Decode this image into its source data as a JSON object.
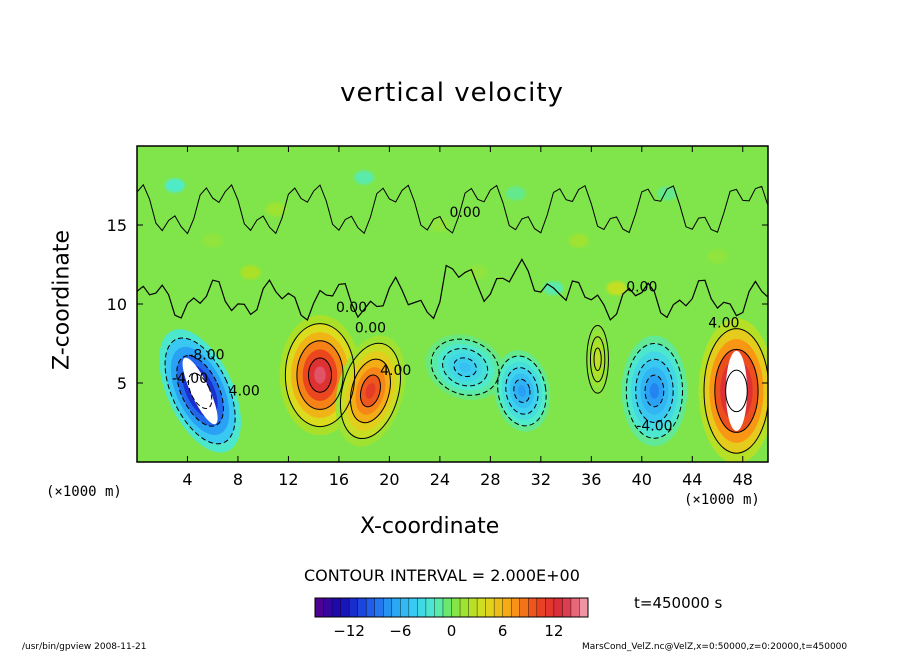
{
  "chart_data": {
    "type": "heatmap",
    "title": "vertical velocity",
    "xlabel": "X-coordinate",
    "ylabel": "Z-coordinate",
    "x_unit_label": "(×1000 m)",
    "xlim": [
      0,
      50
    ],
    "ylim": [
      0,
      20
    ],
    "x_ticks": [
      4,
      8,
      12,
      16,
      20,
      24,
      28,
      32,
      36,
      40,
      44,
      48
    ],
    "y_ticks": [
      5,
      10,
      15
    ],
    "contour_interval_text": "CONTOUR INTERVAL = 2.000E+00",
    "contour_labels": [
      "4.00",
      "-8.00",
      "-4.00",
      "0.00",
      "0.00",
      "0.00",
      "4.00",
      "-4.00",
      "4.00",
      "0.00"
    ],
    "colorbar": {
      "min": -16,
      "max": 16,
      "step": 1,
      "tick_values": [
        -12,
        -6,
        0,
        6,
        12
      ],
      "tick_labels": [
        "−12",
        "−6",
        "0",
        "6",
        "12"
      ]
    },
    "features": [
      {
        "sign": "down",
        "x": 5,
        "z": 4.5,
        "peak": -16
      },
      {
        "sign": "up",
        "x": 14.5,
        "z": 5.5,
        "peak": 14
      },
      {
        "sign": "up",
        "x": 18.5,
        "z": 4.5,
        "peak": 11
      },
      {
        "sign": "down",
        "x": 26,
        "z": 6,
        "peak": -5
      },
      {
        "sign": "down",
        "x": 30.5,
        "z": 4.5,
        "peak": -7
      },
      {
        "sign": "up",
        "x": 36.5,
        "z": 6.5,
        "peak": 3
      },
      {
        "sign": "down",
        "x": 41,
        "z": 4.5,
        "peak": -8
      },
      {
        "sign": "up",
        "x": 47.5,
        "z": 4.5,
        "peak": 17
      }
    ],
    "time_label": "t=450000 s"
  },
  "footer": {
    "left": "/usr/bin/gpview   2008-11-21",
    "right": "MarsCond_VelZ.nc@VelZ,x=0:50000,z=0:20000,t=450000"
  }
}
